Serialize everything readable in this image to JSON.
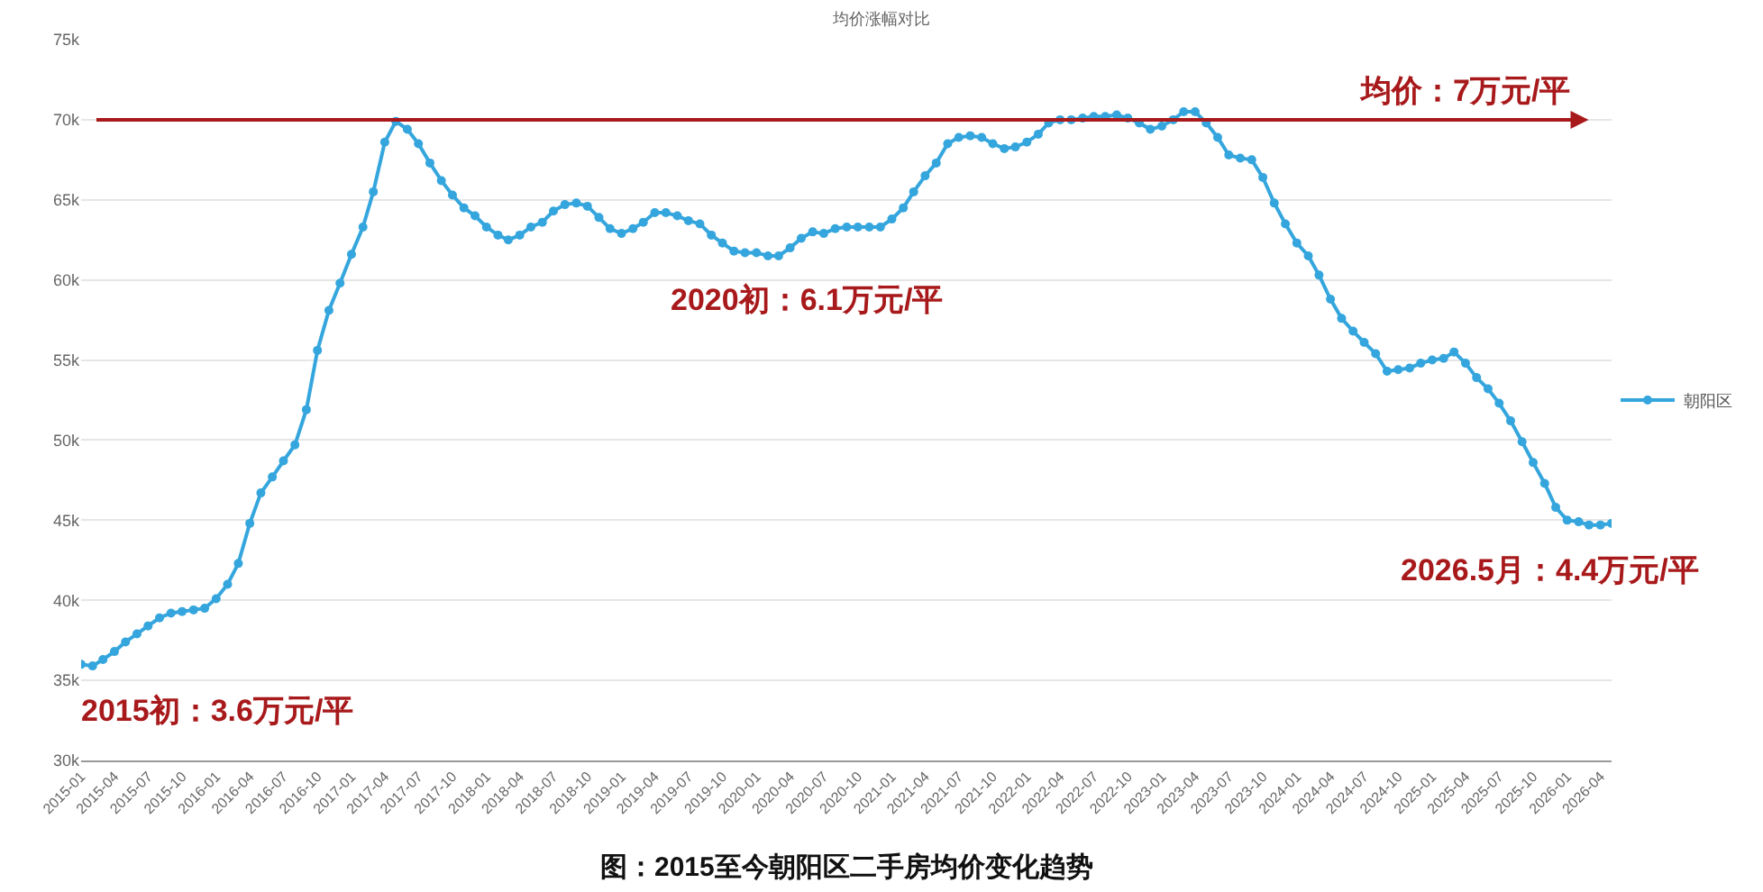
{
  "chart_data": {
    "type": "line",
    "title": "均价涨幅对比",
    "x": [
      "2015-01",
      "2015-02",
      "2015-03",
      "2015-04",
      "2015-05",
      "2015-06",
      "2015-07",
      "2015-08",
      "2015-09",
      "2015-10",
      "2015-11",
      "2015-12",
      "2016-01",
      "2016-02",
      "2016-03",
      "2016-04",
      "2016-05",
      "2016-06",
      "2016-07",
      "2016-08",
      "2016-09",
      "2016-10",
      "2016-11",
      "2016-12",
      "2017-01",
      "2017-02",
      "2017-03",
      "2017-04",
      "2017-05",
      "2017-06",
      "2017-07",
      "2017-08",
      "2017-09",
      "2017-10",
      "2017-11",
      "2017-12",
      "2018-01",
      "2018-02",
      "2018-03",
      "2018-04",
      "2018-05",
      "2018-06",
      "2018-07",
      "2018-08",
      "2018-09",
      "2018-10",
      "2018-11",
      "2018-12",
      "2019-01",
      "2019-02",
      "2019-03",
      "2019-04",
      "2019-05",
      "2019-06",
      "2019-07",
      "2019-08",
      "2019-09",
      "2019-10",
      "2019-11",
      "2019-12",
      "2020-01",
      "2020-02",
      "2020-03",
      "2020-04",
      "2020-05",
      "2020-06",
      "2020-07",
      "2020-08",
      "2020-09",
      "2020-10",
      "2020-11",
      "2020-12",
      "2021-01",
      "2021-02",
      "2021-03",
      "2021-04",
      "2021-05",
      "2021-06",
      "2021-07",
      "2021-08",
      "2021-09",
      "2021-10",
      "2021-11",
      "2021-12",
      "2022-01",
      "2022-02",
      "2022-03",
      "2022-04",
      "2022-05",
      "2022-06",
      "2022-07",
      "2022-08",
      "2022-09",
      "2022-10",
      "2022-11",
      "2022-12",
      "2023-01",
      "2023-02",
      "2023-03",
      "2023-04",
      "2023-05",
      "2023-06",
      "2023-07",
      "2023-08",
      "2023-09",
      "2023-10",
      "2023-11",
      "2023-12",
      "2024-01",
      "2024-02",
      "2024-03",
      "2024-04",
      "2024-05",
      "2024-06",
      "2024-07",
      "2024-08",
      "2024-09",
      "2024-10",
      "2024-11",
      "2024-12",
      "2025-01",
      "2025-02",
      "2025-03",
      "2025-04",
      "2025-05",
      "2025-06",
      "2025-07",
      "2025-08",
      "2025-09",
      "2025-10",
      "2025-11",
      "2025-12",
      "2026-01",
      "2026-02",
      "2026-03",
      "2026-04",
      "2026-05"
    ],
    "series": [
      {
        "name": "朝阳区",
        "color": "#35a6dd",
        "values": [
          36000,
          35900,
          36300,
          36800,
          37400,
          37900,
          38400,
          38900,
          39200,
          39300,
          39400,
          39500,
          40100,
          41000,
          42300,
          44800,
          46700,
          47700,
          48700,
          49700,
          51900,
          55600,
          58100,
          59800,
          61600,
          63300,
          65500,
          68600,
          69900,
          69400,
          68500,
          67300,
          66200,
          65300,
          64500,
          64000,
          63300,
          62800,
          62500,
          62800,
          63300,
          63600,
          64300,
          64700,
          64800,
          64600,
          63900,
          63200,
          62900,
          63200,
          63600,
          64200,
          64200,
          64000,
          63700,
          63500,
          62800,
          62300,
          61800,
          61700,
          61700,
          61500,
          61500,
          62000,
          62600,
          63000,
          62900,
          63200,
          63300,
          63300,
          63300,
          63300,
          63800,
          64500,
          65500,
          66500,
          67300,
          68500,
          68900,
          69000,
          68900,
          68500,
          68200,
          68300,
          68600,
          69100,
          69800,
          70000,
          70000,
          70100,
          70200,
          70200,
          70300,
          70100,
          69800,
          69400,
          69600,
          70000,
          70500,
          70500,
          69800,
          68900,
          67800,
          67600,
          67500,
          66400,
          64800,
          63500,
          62300,
          61500,
          60300,
          58800,
          57600,
          56800,
          56100,
          55400,
          54300,
          54400,
          54500,
          54800,
          55000,
          55100,
          55500,
          54800,
          53900,
          53200,
          52300,
          51200,
          49900,
          48600,
          47300,
          45800,
          45000,
          44900,
          44700,
          44700,
          44800
        ]
      }
    ],
    "xlim": [
      "2015-01",
      "2026-05"
    ],
    "xticks": [
      "2015-01",
      "2015-04",
      "2015-07",
      "2015-10",
      "2016-01",
      "2016-04",
      "2016-07",
      "2016-10",
      "2017-01",
      "2017-04",
      "2017-07",
      "2017-10",
      "2018-01",
      "2018-04",
      "2018-07",
      "2018-10",
      "2019-01",
      "2019-04",
      "2019-07",
      "2019-10",
      "2020-01",
      "2020-04",
      "2020-07",
      "2020-10",
      "2021-01",
      "2021-04",
      "2021-07",
      "2021-10",
      "2022-01",
      "2022-04",
      "2022-07",
      "2022-10",
      "2023-01",
      "2023-04",
      "2023-07",
      "2023-10",
      "2024-01",
      "2024-04",
      "2024-07",
      "2024-10",
      "2025-01",
      "2025-04",
      "2025-07",
      "2025-10",
      "2026-01",
      "2026-04"
    ],
    "ylim": [
      30000,
      75000
    ],
    "yticks": [
      {
        "value": 30000,
        "label": "30k"
      },
      {
        "value": 35000,
        "label": "35k"
      },
      {
        "value": 40000,
        "label": "40k"
      },
      {
        "value": 45000,
        "label": "45k"
      },
      {
        "value": 50000,
        "label": "50k"
      },
      {
        "value": 55000,
        "label": "55k"
      },
      {
        "value": 60000,
        "label": "60k"
      },
      {
        "value": 65000,
        "label": "65k"
      },
      {
        "value": 70000,
        "label": "70k"
      },
      {
        "value": 75000,
        "label": "75k"
      }
    ],
    "ref_lines": [
      {
        "axis": "y",
        "value": 70000,
        "label": "均价：7万元/平",
        "color": "#a8191b"
      }
    ],
    "annotations": [
      {
        "text": "2015初：3.6万元/平",
        "x": "2015-01",
        "y": 36000
      },
      {
        "text": "2020初：6.1万元/平",
        "x": "2020-01",
        "y": 61700
      },
      {
        "text": "2026.5月：4.4万元/平",
        "x": "2026-05",
        "y": 44800
      },
      "图：2015至今朝阳区二手房均价变化趋势"
    ],
    "grid": "y",
    "legend": "right",
    "marker": "circle",
    "line_style": "solid"
  }
}
